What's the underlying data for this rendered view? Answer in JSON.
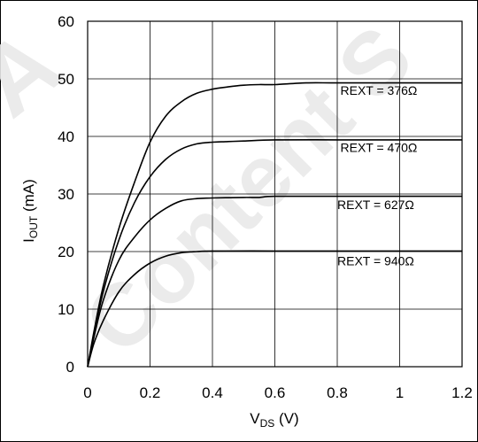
{
  "watermark": [
    "A",
    "Content S"
  ],
  "chart_data": {
    "type": "line",
    "xlabel": {
      "main": "V",
      "sub": "DS",
      "rest": " (V)"
    },
    "ylabel": {
      "main": "I",
      "sub": "OUT",
      "rest": " (mA)"
    },
    "xlim": [
      0,
      1.2
    ],
    "ylim": [
      0,
      60
    ],
    "xticks": [
      0,
      0.2,
      0.4,
      0.6,
      0.8,
      1,
      1.2
    ],
    "xtick_labels": [
      "0",
      "0.2",
      "0.4",
      "0.6",
      "0.8",
      "1",
      "1.2"
    ],
    "yticks": [
      0,
      10,
      20,
      30,
      40,
      50,
      60
    ],
    "ytick_labels": [
      "0",
      "10",
      "20",
      "30",
      "40",
      "50",
      "60"
    ],
    "grid": true,
    "series": [
      {
        "name": "REXT = 376Ω",
        "x": [
          0,
          0.02,
          0.05,
          0.1,
          0.15,
          0.2,
          0.25,
          0.3,
          0.35,
          0.4,
          0.45,
          0.5,
          0.55,
          0.6,
          0.7,
          0.8,
          1.0,
          1.2
        ],
        "y": [
          0,
          6,
          14,
          24,
          32,
          39,
          43.5,
          46,
          47.5,
          48.2,
          48.6,
          48.9,
          49.0,
          49.0,
          49.3,
          49.3,
          49.3,
          49.3
        ]
      },
      {
        "name": "REXT = 470Ω",
        "x": [
          0,
          0.02,
          0.05,
          0.1,
          0.15,
          0.2,
          0.25,
          0.3,
          0.35,
          0.4,
          0.45,
          0.5,
          0.6,
          0.8,
          1.0,
          1.2
        ],
        "y": [
          0,
          5.5,
          13,
          22,
          28.5,
          33,
          36,
          37.8,
          38.7,
          39.0,
          39.1,
          39.2,
          39.4,
          39.4,
          39.4,
          39.4
        ]
      },
      {
        "name": "REXT = 627Ω",
        "x": [
          0,
          0.02,
          0.05,
          0.1,
          0.15,
          0.2,
          0.25,
          0.3,
          0.35,
          0.4,
          0.5,
          0.55,
          0.6,
          0.8,
          1.0,
          1.2
        ],
        "y": [
          0,
          5,
          11.5,
          18.5,
          22.5,
          25.5,
          27.5,
          28.8,
          29.2,
          29.3,
          29.4,
          29.4,
          29.6,
          29.6,
          29.6,
          29.6
        ]
      },
      {
        "name": "REXT = 940Ω",
        "x": [
          0,
          0.02,
          0.05,
          0.1,
          0.15,
          0.2,
          0.25,
          0.3,
          0.35,
          0.4,
          0.6,
          0.8,
          1.0,
          1.2
        ],
        "y": [
          0,
          4,
          8,
          13,
          16,
          18,
          19.2,
          19.8,
          20.0,
          20.1,
          20.1,
          20.1,
          20.1,
          20.1
        ]
      }
    ],
    "labels": [
      {
        "series": 0,
        "text": "REXT = 376Ω",
        "x": 0.81,
        "y": 47.2
      },
      {
        "series": 1,
        "text": "REXT = 470Ω",
        "x": 0.81,
        "y": 37.3
      },
      {
        "series": 2,
        "text": "REXT = 627Ω",
        "x": 0.8,
        "y": 27.4
      },
      {
        "series": 3,
        "text": "REXT = 940Ω",
        "x": 0.8,
        "y": 17.6
      }
    ]
  }
}
